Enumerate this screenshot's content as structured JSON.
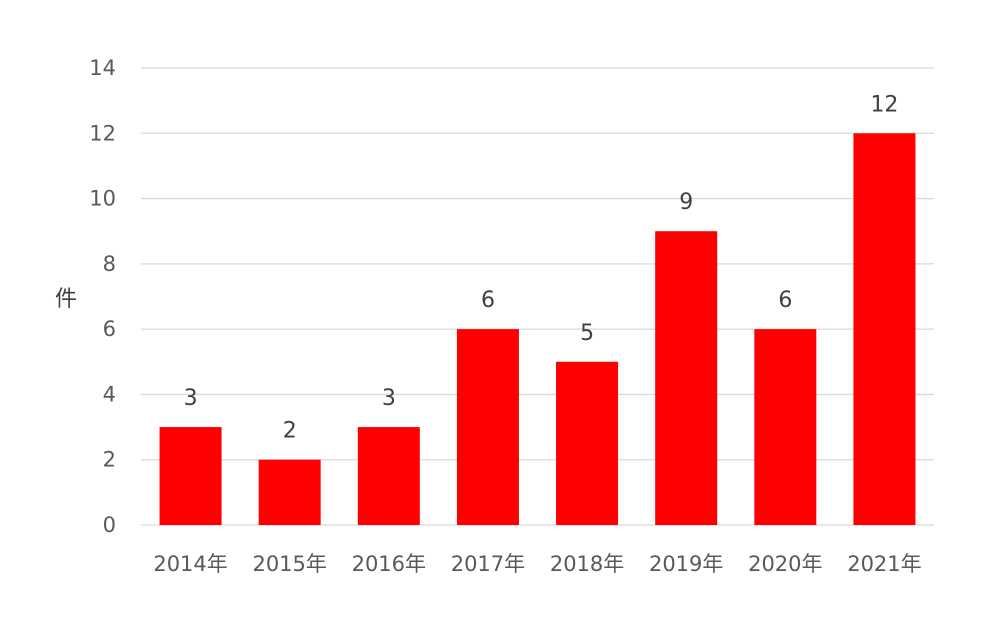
{
  "chart_data": {
    "type": "bar",
    "title": "",
    "xlabel": "",
    "ylabel": "件",
    "categories": [
      "2014年",
      "2015年",
      "2016年",
      "2017年",
      "2018年",
      "2019年",
      "2020年",
      "2021年"
    ],
    "values": [
      3,
      2,
      3,
      6,
      5,
      9,
      6,
      12
    ],
    "ylim": [
      0,
      14
    ],
    "yticks": [
      0,
      2,
      4,
      6,
      8,
      10,
      12,
      14
    ],
    "grid": true,
    "legend": "none",
    "colors": {
      "bar": "#ff0000",
      "grid": "#d9d9d9",
      "tick_text": "#595959",
      "label_text": "#404040"
    }
  }
}
